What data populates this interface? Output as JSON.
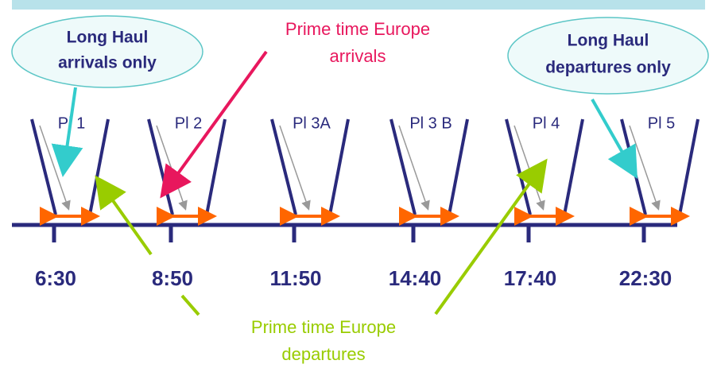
{
  "callouts": [
    {
      "lines": [
        "Long Haul",
        "arrivals only"
      ]
    },
    {
      "lines": [
        "Prime time Europe",
        "arrivals"
      ]
    },
    {
      "lines": [
        "Long Haul",
        "departures only"
      ]
    },
    {
      "lines": [
        "Prime time Europe",
        "departures"
      ]
    }
  ],
  "platforms": [
    {
      "label": "Pl 1",
      "time": "6:30"
    },
    {
      "label": "Pl 2",
      "time": "8:50"
    },
    {
      "label": "Pl 3A",
      "time": "11:50"
    },
    {
      "label": "Pl 3 B",
      "time": "14:40"
    },
    {
      "label": "Pl 4",
      "time": "17:40"
    },
    {
      "label": "Pl 5",
      "time": "22:30"
    }
  ]
}
